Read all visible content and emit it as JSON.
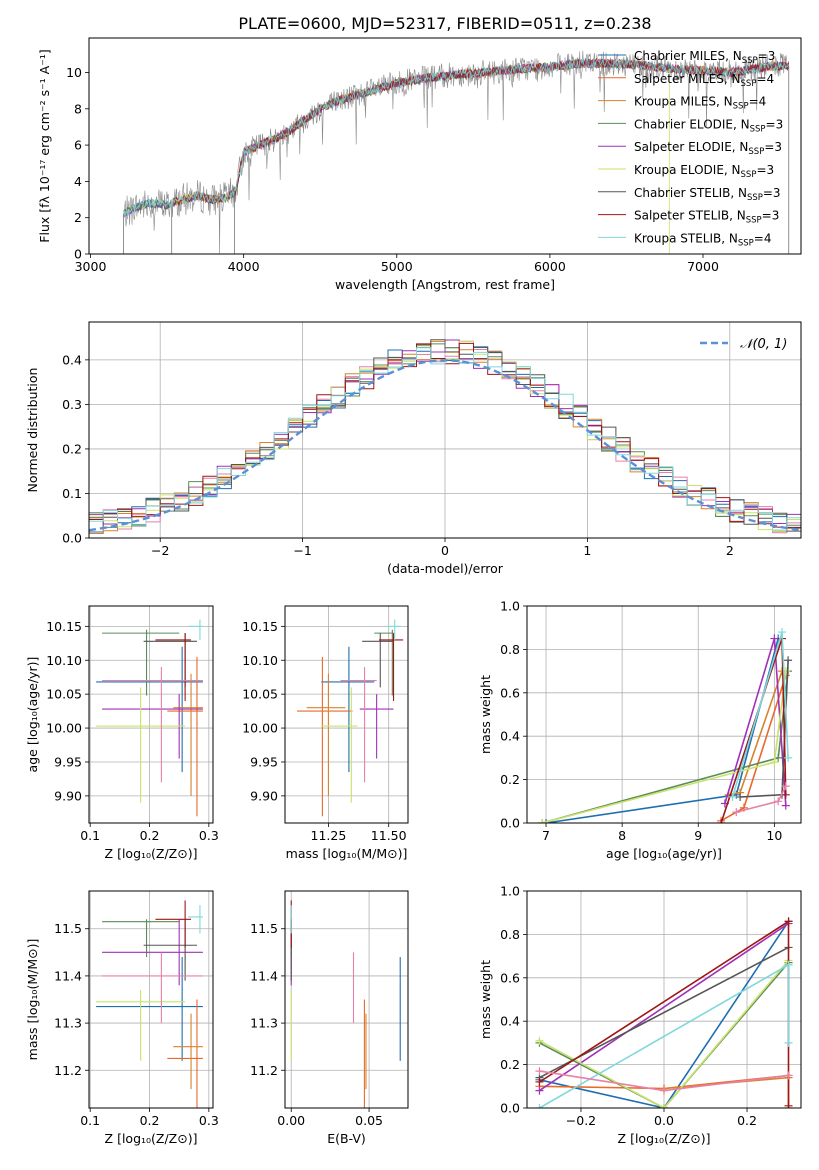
{
  "figure_title": "PLATE=0600, MJD=52317, FIBERID=0511, z=0.238",
  "colors": {
    "chabrier_miles": "#1f6fb0",
    "salpeter_miles": "#e8692a",
    "kroupa_miles": "#d9822b",
    "chabrier_elodie": "#5a8c5a",
    "salpeter_elodie": "#a030b8",
    "kroupa_elodie": "#c9e36a",
    "chabrier_stelib": "#555555",
    "salpeter_stelib": "#a01515",
    "kroupa_stelib": "#7fd8dc",
    "normal": "#5b8fd6",
    "grid": "#b0b0b0"
  },
  "chart_data": [
    {
      "id": "spectrum",
      "type": "line",
      "title": "PLATE=0600, MJD=52317, FIBERID=0511, z=0.238",
      "xlabel": "wavelength [Angstrom, rest frame]",
      "ylabel": "Flux [fλ 10⁻¹⁷ erg cm⁻² s⁻¹ A⁻¹]",
      "xlim": [
        2990,
        7640
      ],
      "ylim": [
        0,
        11.9
      ],
      "xticks": [
        3000,
        4000,
        5000,
        6000,
        7000
      ],
      "yticks": [
        0,
        2,
        4,
        6,
        8,
        10
      ],
      "grid": false,
      "legend": "top-right",
      "legend_entries": [
        {
          "name": "Chabrier MILES, N",
          "sub": "SSP",
          "n": "=3",
          "color": "#1f6fb0"
        },
        {
          "name": "Salpeter MILES, N",
          "sub": "SSP",
          "n": "=4",
          "color": "#e8692a"
        },
        {
          "name": "Kroupa MILES, N",
          "sub": "SSP",
          "n": "=4",
          "color": "#d9822b"
        },
        {
          "name": "Chabrier ELODIE, N",
          "sub": "SSP",
          "n": "=3",
          "color": "#5a8c5a"
        },
        {
          "name": "Salpeter ELODIE, N",
          "sub": "SSP",
          "n": "=3",
          "color": "#a030b8"
        },
        {
          "name": "Kroupa ELODIE, N",
          "sub": "SSP",
          "n": "=3",
          "color": "#c9e36a"
        },
        {
          "name": "Chabrier STELIB, N",
          "sub": "SSP",
          "n": "=3",
          "color": "#555555"
        },
        {
          "name": "Salpeter STELIB, N",
          "sub": "SSP",
          "n": "=3",
          "color": "#a01515"
        },
        {
          "name": "Kroupa STELIB, N",
          "sub": "SSP",
          "n": "=4",
          "color": "#7fd8dc"
        }
      ],
      "continuum": {
        "x": [
          3210,
          3300,
          3400,
          3500,
          3600,
          3700,
          3800,
          3880,
          3950,
          4000,
          4100,
          4200,
          4300,
          4400,
          4500,
          4600,
          4800,
          5000,
          5200,
          5400,
          5600,
          5800,
          6000,
          6200,
          6400,
          6600,
          6800,
          7000,
          7200,
          7400,
          7560
        ],
        "y": [
          2.2,
          2.6,
          2.8,
          2.7,
          3.0,
          3.2,
          3.0,
          3.1,
          3.5,
          5.6,
          6.0,
          6.3,
          6.8,
          7.4,
          8.0,
          8.4,
          8.9,
          9.4,
          9.7,
          9.9,
          10.0,
          10.2,
          10.3,
          10.5,
          10.5,
          10.4,
          10.2,
          10.1,
          10.0,
          10.3,
          10.4
        ]
      }
    },
    {
      "id": "residuals",
      "type": "line",
      "xlabel": "(data-model)/error",
      "ylabel": "Normed distribution",
      "xlim": [
        -2.5,
        2.5
      ],
      "ylim": [
        0,
        0.485
      ],
      "xticks": [
        -2,
        -1,
        0,
        1,
        2
      ],
      "yticks": [
        0,
        0.1,
        0.2,
        0.3,
        0.4
      ],
      "grid": true,
      "legend": "top-right",
      "legend_label": "𝒩(0, 1)"
    },
    {
      "id": "age_vs_Z",
      "type": "scatter",
      "xlabel": "Z [log₁₀(Z/Z⊙)]",
      "ylabel": "age  [log₁₀(age/yr)]",
      "xlim": [
        0.098,
        0.307
      ],
      "ylim": [
        9.86,
        10.18
      ],
      "xticks": [
        0.1,
        0.2,
        0.3
      ],
      "yticks": [
        9.9,
        9.95,
        10.0,
        10.05,
        10.1,
        10.15
      ],
      "grid": true
    },
    {
      "id": "age_vs_mass",
      "type": "scatter",
      "xlabel": "mass [log₁₀(M/M⊙)]",
      "xlim": [
        11.07,
        11.58
      ],
      "ylim": [
        9.86,
        10.18
      ],
      "xticks": [
        11.25,
        11.5
      ],
      "yticks": [
        9.9,
        9.95,
        10.0,
        10.05,
        10.1,
        10.15
      ],
      "grid": true
    },
    {
      "id": "massweight_vs_age",
      "type": "line",
      "xlabel": "age  [log₁₀(age/yr)]",
      "ylabel": "mass weight",
      "xlim": [
        6.75,
        10.35
      ],
      "ylim": [
        0,
        1.0
      ],
      "xticks": [
        7,
        8,
        9,
        10
      ],
      "yticks": [
        0,
        0.2,
        0.4,
        0.6,
        0.8,
        1.0
      ],
      "grid": true
    },
    {
      "id": "mass_vs_Z",
      "type": "scatter",
      "xlabel": "Z [log₁₀(Z/Z⊙)]",
      "ylabel": "mass [log₁₀(M/M⊙)]",
      "xlim": [
        0.098,
        0.307
      ],
      "ylim": [
        11.12,
        11.58
      ],
      "xticks": [
        0.1,
        0.2,
        0.3
      ],
      "yticks": [
        11.2,
        11.3,
        11.4,
        11.5
      ],
      "grid": true
    },
    {
      "id": "mass_vs_ebv",
      "type": "scatter",
      "xlabel": "E(B-V)",
      "xlim": [
        -0.004,
        0.075
      ],
      "ylim": [
        11.12,
        11.58
      ],
      "xticks": [
        0.0,
        0.05
      ],
      "yticks": [
        11.2,
        11.3,
        11.4,
        11.5
      ],
      "grid": true
    },
    {
      "id": "massweight_vs_Z",
      "type": "line",
      "xlabel": "Z [log₁₀(Z/Z⊙)]",
      "ylabel": "mass weight",
      "xlim": [
        -0.33,
        0.33
      ],
      "ylim": [
        0,
        1.0
      ],
      "xticks": [
        -0.2,
        0.0,
        0.2
      ],
      "yticks": [
        0,
        0.2,
        0.4,
        0.6,
        0.8,
        1.0
      ],
      "grid": true
    }
  ],
  "models": [
    {
      "name": "Chabrier MILES",
      "color": "#1f6fb0",
      "Z": 0.255,
      "Z_err": [
        0.255,
        0.255
      ],
      "age": 10.068,
      "age_err": [
        9.935,
        10.12
      ],
      "mass": 11.335,
      "mass_err": [
        11.23,
        11.44
      ],
      "ebv": 0.07,
      "ebv_err": [
        11.21,
        11.37
      ]
    },
    {
      "name": "Salpeter MILES",
      "color": "#e8692a",
      "Z": 0.281,
      "age": 10.025,
      "mass": 11.225,
      "ebv": 0.047
    },
    {
      "name": "Kroupa MILES",
      "color": "#d9822b",
      "Z": 0.281,
      "age": 10.0,
      "mass": 11.225,
      "ebv": 0.047
    },
    {
      "name": "Chabrier ELODIE",
      "color": "#5a8c5a",
      "Z": 0.195,
      "age": 10.14,
      "mass": 11.515,
      "ebv": 0.0
    },
    {
      "name": "Salpeter ELODIE",
      "color": "#a030b8",
      "Z": 0.25,
      "age": 10.028,
      "mass": 11.45,
      "ebv": 0.0
    },
    {
      "name": "Kroupa ELODIE",
      "color": "#c9e36a",
      "Z": 0.185,
      "age": 10.003,
      "mass": 11.345,
      "ebv": 0.0
    },
    {
      "name": "Chabrier STELIB",
      "color": "#555555",
      "Z": 0.26,
      "age": 10.128,
      "mass": 11.465,
      "ebv": 0.0
    },
    {
      "name": "Salpeter STELIB",
      "color": "#a01515",
      "Z": 0.26,
      "age": 10.13,
      "mass": 11.52,
      "ebv": 0.0
    },
    {
      "name": "Kroupa STELIB",
      "color": "#7fd8dc",
      "Z": 0.285,
      "age": 10.15,
      "mass": 11.525,
      "ebv": 0.0
    },
    {
      "name": "pink",
      "color": "#e87fa6",
      "Z": 0.22,
      "age": 10.07,
      "mass": 11.4,
      "ebv": 0.04
    }
  ]
}
